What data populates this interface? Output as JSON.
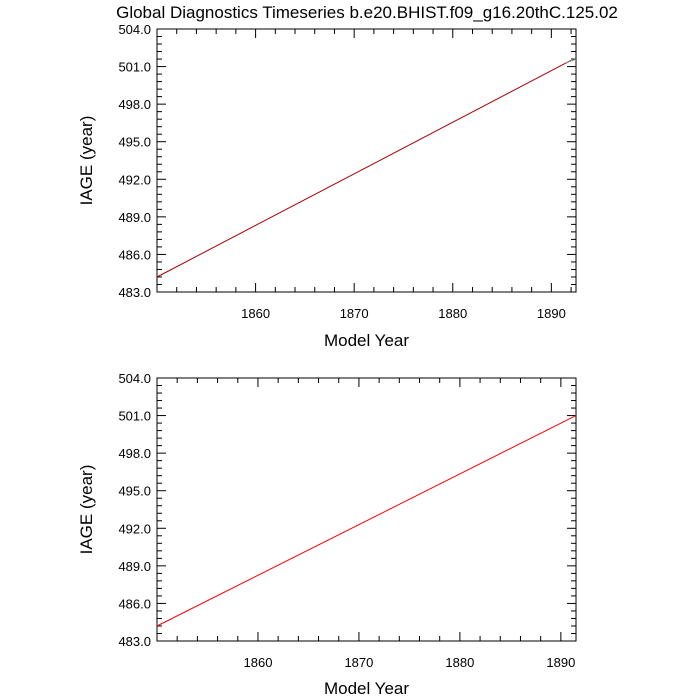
{
  "title": "Global Diagnostics Timeseries b.e20.BHIST.f09_g16.20thC.125.02",
  "colors": {
    "dark_red": "#aa0000",
    "red": "#ff0000",
    "grey": "#888888",
    "axis": "#000000"
  },
  "chart_data": [
    {
      "type": "line",
      "xlabel": "Model Year",
      "ylabel": "IAGE (year)",
      "xlim": [
        1850,
        1892.5
      ],
      "ylim": [
        483.0,
        504.0
      ],
      "xticks": [
        1860,
        1870,
        1880,
        1890
      ],
      "xtick_labels": [
        "1860",
        "1870",
        "1880",
        "1890"
      ],
      "yticks": [
        483.0,
        486.0,
        489.0,
        492.0,
        495.0,
        498.0,
        501.0,
        504.0
      ],
      "ytick_labels": [
        "483.0",
        "486.0",
        "489.0",
        "492.0",
        "495.0",
        "498.0",
        "501.0",
        "504.0"
      ],
      "series": [
        {
          "color": "#aa0000",
          "x": [
            1850,
            1892
          ],
          "y": [
            484.2,
            501.5
          ]
        },
        {
          "color": "#888888",
          "x": [
            1891.5,
            1892.5
          ],
          "y": [
            501.3,
            501.6
          ]
        }
      ]
    },
    {
      "type": "line",
      "xlabel": "Model Year",
      "ylabel": "IAGE (year)",
      "xlim": [
        1850,
        1891.5
      ],
      "ylim": [
        483.0,
        504.0
      ],
      "xticks": [
        1860,
        1870,
        1880,
        1890
      ],
      "xtick_labels": [
        "1860",
        "1870",
        "1880",
        "1890"
      ],
      "yticks": [
        483.0,
        486.0,
        489.0,
        492.0,
        495.0,
        498.0,
        501.0,
        504.0
      ],
      "ytick_labels": [
        "483.0",
        "486.0",
        "489.0",
        "492.0",
        "495.0",
        "498.0",
        "501.0",
        "504.0"
      ],
      "series": [
        {
          "color": "#ff0000",
          "x": [
            1850,
            1891.5
          ],
          "y": [
            484.2,
            501.0
          ]
        }
      ]
    }
  ]
}
